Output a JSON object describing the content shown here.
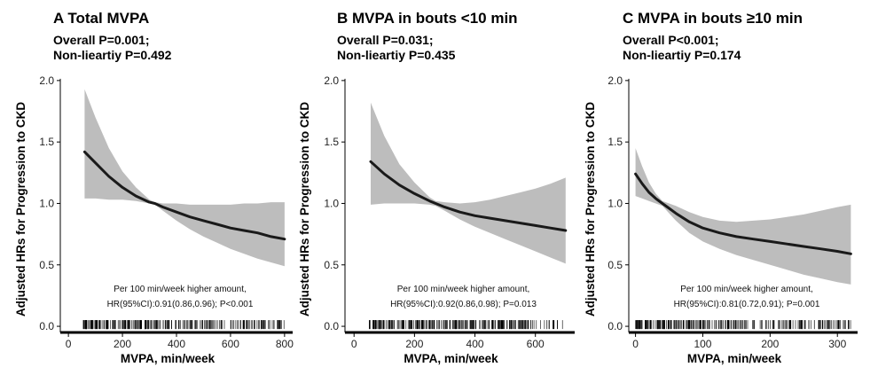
{
  "chart_data": [
    {
      "type": "line",
      "panel_letter": "A",
      "title": "Total MVPA",
      "subtitle_lines": [
        "Overall P=0.001;",
        "Non-lieartiy P=0.492"
      ],
      "xlabel": "MVPA, min/week",
      "ylabel": "Adjusted HRs for Progression to CKD",
      "xlim": [
        -30,
        830
      ],
      "ylim": [
        -0.05,
        2.1
      ],
      "xticks": [
        0,
        200,
        400,
        600,
        800
      ],
      "yticks": [
        0.0,
        0.5,
        1.0,
        1.5,
        2.0
      ],
      "ytick_labels": [
        "0.0",
        "0.5",
        "1.0",
        "1.5",
        "2.0"
      ],
      "grid": false,
      "series": [
        {
          "x": [
            60,
            100,
            150,
            200,
            250,
            300,
            320,
            350,
            400,
            450,
            500,
            550,
            600,
            650,
            700,
            750,
            800
          ],
          "y": [
            1.42,
            1.33,
            1.22,
            1.13,
            1.06,
            1.01,
            1.0,
            0.97,
            0.93,
            0.89,
            0.86,
            0.83,
            0.8,
            0.78,
            0.76,
            0.73,
            0.71
          ],
          "lower": [
            1.04,
            1.04,
            1.03,
            1.03,
            1.02,
            1.0,
            0.99,
            0.94,
            0.86,
            0.79,
            0.73,
            0.68,
            0.63,
            0.59,
            0.55,
            0.52,
            0.49
          ],
          "upper": [
            1.93,
            1.7,
            1.45,
            1.26,
            1.13,
            1.03,
            1.01,
            1.0,
            1.0,
            0.99,
            0.99,
            0.99,
            0.99,
            1.0,
            1.0,
            1.01,
            1.01
          ]
        }
      ],
      "annotation": [
        "Per 100 min/week higher amount,",
        "HR(95%CI):0.91(0.86,0.96); P<0.001"
      ],
      "rug_range": [
        55,
        800
      ]
    },
    {
      "type": "line",
      "panel_letter": "B",
      "title": "MVPA in bouts <10 min",
      "subtitle_lines": [
        "Overall P=0.031;",
        "Non-lieartiy P=0.435"
      ],
      "xlabel": "MVPA, min/week",
      "ylabel": "Adjusted HRs for Progression to CKD",
      "xlim": [
        -30,
        730
      ],
      "ylim": [
        -0.05,
        2.1
      ],
      "xticks": [
        0,
        200,
        400,
        600
      ],
      "yticks": [
        0.0,
        0.5,
        1.0,
        1.5,
        2.0
      ],
      "ytick_labels": [
        "0.0",
        "0.5",
        "1.0",
        "1.5",
        "2.0"
      ],
      "grid": false,
      "series": [
        {
          "x": [
            55,
            100,
            150,
            200,
            250,
            270,
            300,
            350,
            400,
            450,
            500,
            550,
            600,
            650,
            700
          ],
          "y": [
            1.34,
            1.24,
            1.15,
            1.08,
            1.02,
            1.0,
            0.97,
            0.93,
            0.9,
            0.88,
            0.86,
            0.84,
            0.82,
            0.8,
            0.78
          ],
          "lower": [
            0.99,
            1.0,
            1.0,
            1.0,
            0.99,
            0.98,
            0.94,
            0.87,
            0.81,
            0.76,
            0.71,
            0.66,
            0.61,
            0.56,
            0.51
          ],
          "upper": [
            1.82,
            1.55,
            1.32,
            1.17,
            1.05,
            1.02,
            1.01,
            1.0,
            1.01,
            1.03,
            1.06,
            1.09,
            1.12,
            1.16,
            1.21
          ]
        }
      ],
      "annotation": [
        "Per 100 min/week higher amount,",
        "HR(95%CI):0.92(0.86,0.98); P=0.013"
      ],
      "rug_range": [
        50,
        700
      ]
    },
    {
      "type": "line",
      "panel_letter": "C",
      "title": "MVPA in bouts ≥10 min",
      "subtitle_lines": [
        "Overall P<0.001;",
        "Non-lieartiy P=0.174"
      ],
      "xlabel": "MVPA, min/week",
      "ylabel": "Adjusted HRs for Progression to CKD",
      "xlim": [
        -10,
        330
      ],
      "ylim": [
        -0.05,
        2.1
      ],
      "xticks": [
        0,
        100,
        200,
        300
      ],
      "yticks": [
        0.0,
        0.5,
        1.0,
        1.5,
        2.0
      ],
      "ytick_labels": [
        "0.0",
        "0.5",
        "1.0",
        "1.5",
        "2.0"
      ],
      "grid": false,
      "series": [
        {
          "x": [
            0,
            10,
            20,
            30,
            40,
            50,
            60,
            80,
            100,
            125,
            150,
            175,
            200,
            225,
            250,
            275,
            300,
            320
          ],
          "y": [
            1.24,
            1.16,
            1.09,
            1.04,
            1.0,
            0.96,
            0.92,
            0.85,
            0.8,
            0.76,
            0.73,
            0.71,
            0.69,
            0.67,
            0.65,
            0.63,
            0.61,
            0.59
          ],
          "lower": [
            1.06,
            1.04,
            1.02,
            1.0,
            0.98,
            0.92,
            0.86,
            0.76,
            0.69,
            0.63,
            0.58,
            0.54,
            0.5,
            0.46,
            0.42,
            0.39,
            0.36,
            0.34
          ],
          "upper": [
            1.45,
            1.3,
            1.17,
            1.08,
            1.02,
            1.0,
            0.98,
            0.93,
            0.89,
            0.86,
            0.85,
            0.86,
            0.87,
            0.89,
            0.91,
            0.94,
            0.97,
            0.99
          ]
        }
      ],
      "annotation": [
        "Per 100 min/week higher amount,",
        "HR(95%CI):0.81(0.72,0.91); P=0.001"
      ],
      "rug_range": [
        0,
        320
      ]
    }
  ]
}
